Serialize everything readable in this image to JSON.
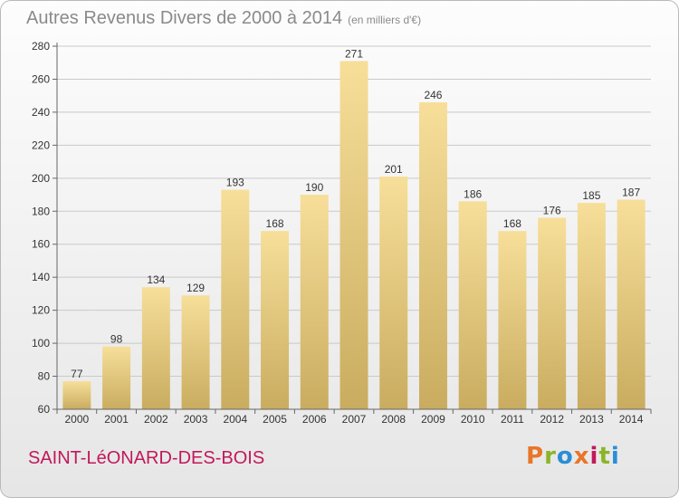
{
  "header": {
    "title": "Autres Revenus Divers de 2000 à 2014",
    "subtitle": "(en milliers d'€)"
  },
  "footer": {
    "place_name": "SAINT-LéONARD-DES-BOIS",
    "logo_text": "Proxiti",
    "logo_colors": [
      "#e8752a",
      "#8bb529",
      "#2a8ed6",
      "#e8752a",
      "#c2185b",
      "#8bb529",
      "#2a8ed6"
    ]
  },
  "colors": {
    "bar_light": "#f7df9a",
    "bar_dark": "#c9ac5f",
    "grid": "#c9c9c9",
    "axis_text": "#333333",
    "place_text": "#c2185b"
  },
  "chart_data": {
    "type": "bar",
    "categories": [
      "2000",
      "2001",
      "2002",
      "2003",
      "2004",
      "2005",
      "2006",
      "2007",
      "2008",
      "2009",
      "2010",
      "2011",
      "2012",
      "2013",
      "2014"
    ],
    "values": [
      77,
      98,
      134,
      129,
      193,
      168,
      190,
      271,
      201,
      246,
      186,
      168,
      176,
      185,
      187
    ],
    "yticks": [
      60,
      80,
      100,
      120,
      140,
      160,
      180,
      200,
      220,
      240,
      260,
      280
    ],
    "ylim": [
      60,
      280
    ],
    "grid": true,
    "data_labels": true
  }
}
